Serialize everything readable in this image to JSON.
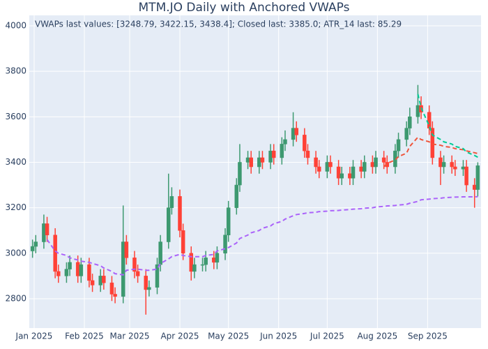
{
  "chart_data": {
    "type": "candlestick",
    "title": "MTM.JO Daily with Anchored VWAPs",
    "annotation": "VWAPs last values: [3248.79, 3422.15, 3438.4]; Closed last: 3385.0; ATR_14 last: 85.29",
    "x": [
      "2024-12-31",
      "2025-01-02",
      "2025-01-07",
      "2025-01-09",
      "2025-01-14",
      "2025-01-16",
      "2025-01-21",
      "2025-01-23",
      "2025-01-28",
      "2025-01-30",
      "2025-02-04",
      "2025-02-06",
      "2025-02-11",
      "2025-02-13",
      "2025-02-18",
      "2025-02-20",
      "2025-02-25",
      "2025-02-27",
      "2025-03-04",
      "2025-03-06",
      "2025-03-11",
      "2025-03-13",
      "2025-03-18",
      "2025-03-20",
      "2025-03-25",
      "2025-03-27",
      "2025-04-01",
      "2025-04-03",
      "2025-04-08",
      "2025-04-10",
      "2025-04-15",
      "2025-04-17",
      "2025-04-22",
      "2025-04-24",
      "2025-04-29",
      "2025-05-01",
      "2025-05-06",
      "2025-05-08",
      "2025-05-13",
      "2025-05-15",
      "2025-05-20",
      "2025-05-22",
      "2025-05-27",
      "2025-05-29",
      "2025-06-03",
      "2025-06-05",
      "2025-06-10",
      "2025-06-12",
      "2025-06-17",
      "2025-06-19",
      "2025-06-24",
      "2025-06-26",
      "2025-07-01",
      "2025-07-03",
      "2025-07-08",
      "2025-07-10",
      "2025-07-15",
      "2025-07-17",
      "2025-07-22",
      "2025-07-24",
      "2025-07-29",
      "2025-07-31",
      "2025-08-05",
      "2025-08-07",
      "2025-08-12",
      "2025-08-14",
      "2025-08-19",
      "2025-08-21",
      "2025-08-26",
      "2025-08-28",
      "2025-09-02",
      "2025-09-04",
      "2025-09-09",
      "2025-09-11",
      "2025-09-16",
      "2025-09-18",
      "2025-09-23",
      "2025-09-25",
      "2025-09-30",
      "2025-10-02"
    ],
    "open": [
      3010,
      3030,
      3050,
      3130,
      3080,
      2920,
      2900,
      2930,
      2960,
      2900,
      2950,
      2880,
      2860,
      2900,
      2870,
      2820,
      2810,
      3050,
      2980,
      2920,
      2900,
      2840,
      2850,
      2950,
      3050,
      3200,
      3250,
      3100,
      3000,
      2920,
      2950,
      2950,
      2980,
      2960,
      3000,
      3080,
      3200,
      3300,
      3400,
      3420,
      3380,
      3420,
      3400,
      3450,
      3420,
      3480,
      3500,
      3550,
      3520,
      3450,
      3420,
      3380,
      3360,
      3400,
      3380,
      3330,
      3350,
      3330,
      3380,
      3360,
      3400,
      3380,
      3420,
      3400,
      3380,
      3450,
      3500,
      3550,
      3600,
      3650,
      3620,
      3550,
      3420,
      3380,
      3400,
      3380,
      3370,
      3380,
      3300,
      3280
    ],
    "high": [
      3060,
      3080,
      3170,
      3160,
      3110,
      2950,
      2960,
      2990,
      2990,
      2980,
      2980,
      2910,
      2930,
      2930,
      2900,
      2850,
      3210,
      3080,
      3010,
      2950,
      2930,
      2880,
      2980,
      3080,
      3350,
      3290,
      3280,
      3130,
      3030,
      2980,
      2980,
      3010,
      3010,
      3030,
      3110,
      3230,
      3330,
      3480,
      3450,
      3450,
      3450,
      3450,
      3480,
      3480,
      3510,
      3540,
      3620,
      3580,
      3550,
      3480,
      3450,
      3410,
      3430,
      3430,
      3410,
      3380,
      3380,
      3410,
      3410,
      3430,
      3430,
      3450,
      3450,
      3430,
      3480,
      3530,
      3580,
      3640,
      3740,
      3690,
      3650,
      3580,
      3450,
      3430,
      3430,
      3410,
      3410,
      3410,
      3330,
      3400
    ],
    "low": [
      2980,
      3000,
      3020,
      3050,
      2890,
      2870,
      2870,
      2900,
      2870,
      2870,
      2850,
      2830,
      2830,
      2840,
      2790,
      2780,
      2780,
      2950,
      2890,
      2870,
      2730,
      2810,
      2820,
      2920,
      3020,
      3170,
      3070,
      2970,
      2880,
      2890,
      2920,
      2920,
      2930,
      2930,
      2970,
      3050,
      3170,
      3270,
      3370,
      3350,
      3350,
      3370,
      3370,
      3390,
      3390,
      3450,
      3470,
      3490,
      3420,
      3390,
      3350,
      3330,
      3330,
      3350,
      3300,
      3300,
      3300,
      3300,
      3330,
      3330,
      3350,
      3350,
      3370,
      3350,
      3350,
      3420,
      3470,
      3520,
      3570,
      3590,
      3520,
      3390,
      3300,
      3350,
      3350,
      3340,
      3340,
      3270,
      3200,
      3250
    ],
    "close": [
      3030,
      3050,
      3130,
      3080,
      2920,
      2900,
      2930,
      2960,
      2900,
      2950,
      2880,
      2860,
      2900,
      2870,
      2820,
      2810,
      3050,
      2980,
      2920,
      2900,
      2840,
      2850,
      2950,
      3050,
      3200,
      3250,
      3100,
      3000,
      2920,
      2950,
      2950,
      2980,
      2960,
      3000,
      3080,
      3200,
      3300,
      3400,
      3420,
      3380,
      3420,
      3400,
      3450,
      3420,
      3480,
      3500,
      3550,
      3520,
      3450,
      3420,
      3380,
      3360,
      3400,
      3380,
      3330,
      3350,
      3330,
      3380,
      3360,
      3400,
      3380,
      3420,
      3400,
      3380,
      3450,
      3500,
      3550,
      3600,
      3650,
      3620,
      3550,
      3420,
      3380,
      3400,
      3380,
      3370,
      3380,
      3300,
      3280,
      3385
    ],
    "increasing_color": "#3d9970",
    "decreasing_color": "#ff4136",
    "series": [
      {
        "color": "#ab63fa",
        "dash": "6,4",
        "values": [
          null,
          null,
          null,
          3060,
          3010,
          3000,
          2990,
          2980,
          2970,
          2965,
          2960,
          2955,
          2945,
          2935,
          2920,
          2910,
          2905,
          2925,
          2930,
          2930,
          2925,
          2925,
          2930,
          2955,
          2975,
          2985,
          2995,
          2990,
          2985,
          2985,
          2985,
          2990,
          2995,
          3010,
          3020,
          3025,
          3045,
          3065,
          3080,
          3090,
          3100,
          3110,
          3120,
          3130,
          3140,
          3150,
          3165,
          3170,
          3175,
          3178,
          3180,
          3183,
          3185,
          3187,
          3188,
          3190,
          3192,
          3194,
          3196,
          3198,
          3200,
          3203,
          3206,
          3208,
          3210,
          3212,
          3215,
          3220,
          3228,
          3235,
          3238,
          3240,
          3242,
          3244,
          3246,
          3247,
          3248,
          3248,
          3248,
          3248.79
        ]
      },
      {
        "color": "#ef553b",
        "dash": "6,4",
        "values": [
          null,
          null,
          null,
          null,
          null,
          null,
          null,
          null,
          null,
          null,
          null,
          null,
          null,
          null,
          null,
          null,
          null,
          null,
          null,
          null,
          null,
          null,
          null,
          null,
          null,
          null,
          null,
          null,
          null,
          null,
          null,
          null,
          null,
          null,
          null,
          null,
          null,
          null,
          null,
          null,
          null,
          null,
          null,
          null,
          null,
          null,
          null,
          null,
          null,
          null,
          null,
          null,
          null,
          null,
          null,
          null,
          null,
          null,
          null,
          null,
          null,
          null,
          3380,
          3395,
          3410,
          3425,
          3440,
          3470,
          3510,
          3500,
          3490,
          3480,
          3475,
          3470,
          3465,
          3460,
          3455,
          3450,
          3442,
          3438.4
        ]
      },
      {
        "color": "#00cc96",
        "dash": "6,4",
        "values": [
          null,
          null,
          null,
          null,
          null,
          null,
          null,
          null,
          null,
          null,
          null,
          null,
          null,
          null,
          null,
          null,
          null,
          null,
          null,
          null,
          null,
          null,
          null,
          null,
          null,
          null,
          null,
          null,
          null,
          null,
          null,
          null,
          null,
          null,
          null,
          null,
          null,
          null,
          null,
          null,
          null,
          null,
          null,
          null,
          null,
          null,
          null,
          null,
          null,
          null,
          null,
          null,
          null,
          null,
          null,
          null,
          null,
          null,
          null,
          null,
          null,
          null,
          null,
          null,
          null,
          null,
          null,
          null,
          3700,
          3640,
          3560,
          3520,
          3500,
          3490,
          3480,
          3470,
          3460,
          3445,
          3430,
          3422.15
        ]
      }
    ],
    "xlim": [
      "2024-12-29",
      "2025-10-04"
    ],
    "xticks": [
      {
        "value": "2025-01-01",
        "label": "Jan 2025"
      },
      {
        "value": "2025-02-01",
        "label": "Feb 2025"
      },
      {
        "value": "2025-03-01",
        "label": "Mar 2025"
      },
      {
        "value": "2025-04-01",
        "label": "Apr 2025"
      },
      {
        "value": "2025-05-01",
        "label": "May 2025"
      },
      {
        "value": "2025-06-01",
        "label": "Jun 2025"
      },
      {
        "value": "2025-07-01",
        "label": "Jul 2025"
      },
      {
        "value": "2025-08-01",
        "label": "Aug 2025"
      },
      {
        "value": "2025-09-01",
        "label": "Sep 2025"
      }
    ],
    "ylim": [
      2671,
      4046
    ],
    "yticks": [
      2800,
      3000,
      3200,
      3400,
      3600,
      3800,
      4000
    ],
    "grid": true
  }
}
